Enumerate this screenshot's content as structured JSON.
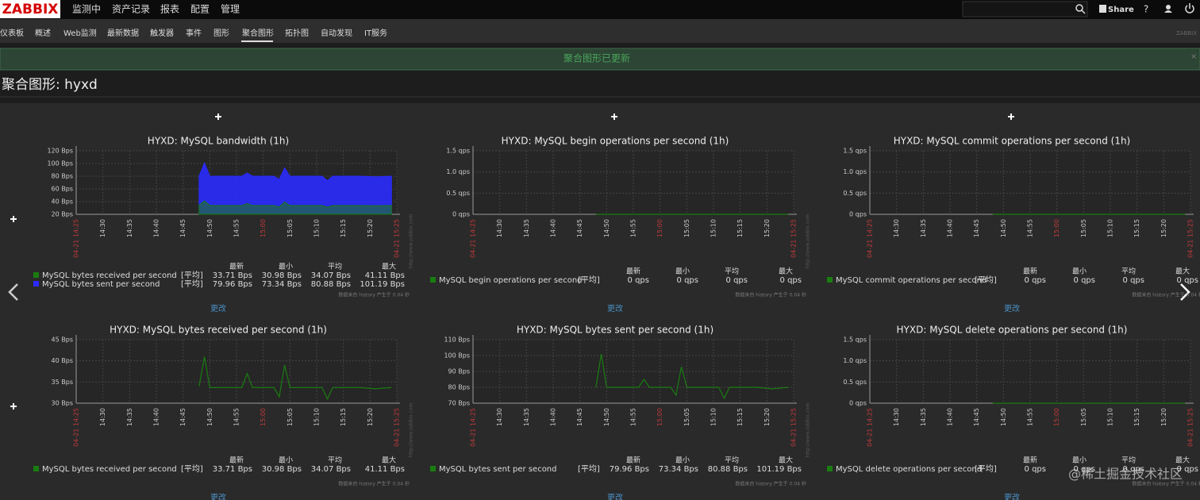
{
  "header": {
    "logo": "ZABBIX",
    "menu": [
      "监测中",
      "资产记录",
      "报表",
      "配置",
      "管理"
    ],
    "share": "Share",
    "help": "?"
  },
  "subnav": {
    "items": [
      "仪表板",
      "概述",
      "Web监测",
      "最新数据",
      "触发器",
      "事件",
      "图形",
      "聚合图形",
      "拓扑图",
      "自动发现",
      "IT服务"
    ],
    "brand": "ZABBIX"
  },
  "message": "聚合图形已更新",
  "page_title": "聚合图形: hyxd",
  "legend_headers": [
    "最新",
    "最小",
    "平均",
    "最大"
  ],
  "legend_func": "[平均]",
  "edit_label": "更改",
  "footnote": "数据来自 history 产生于 0.04 秒",
  "side_note": "http://www.zabbix.com",
  "watermark": "@稀土掘金技术社区",
  "xlim": [
    "14:25",
    "15:25"
  ],
  "xticks": [
    {
      "value": "14:25",
      "label": "04-21 14:25",
      "color": "#c23a3a"
    },
    "14:30",
    "14:35",
    "14:40",
    "14:45",
    "14:50",
    "14:55",
    {
      "value": "15:00",
      "label": "15:00",
      "color": "#c23a3a"
    },
    "15:05",
    "15:10",
    "15:15",
    "15:20",
    {
      "value": "15:25",
      "label": "04-21 15:25",
      "color": "#c23a3a"
    }
  ],
  "graphs": [
    {
      "type": "area",
      "title": "HYXD: MySQL bandwidth (1h)",
      "ylim": [
        20,
        120
      ],
      "yticks": [
        {
          "value": 20,
          "label": "20 Bps"
        },
        {
          "value": 40,
          "label": "40 Bps"
        },
        {
          "value": 60,
          "label": "60 Bps"
        },
        {
          "value": 80,
          "label": "80 Bps"
        },
        {
          "value": 100,
          "label": "100 Bps"
        },
        {
          "value": 120,
          "label": "120 Bps"
        }
      ],
      "x": [
        "14:48",
        "14:49",
        "14:50",
        "14:53",
        "14:56",
        "14:57",
        "14:58",
        "15:02",
        "15:03",
        "15:04",
        "15:05",
        "15:08",
        "15:11",
        "15:12",
        "15:13",
        "15:18",
        "15:21",
        "15:24"
      ],
      "series": [
        {
          "name": "MySQL bytes sent per second",
          "color": "#2b2bff",
          "values": [
            80,
            101,
            80,
            80,
            80,
            85,
            80,
            80,
            75,
            93,
            80,
            80,
            80,
            73,
            80,
            80,
            79,
            80
          ],
          "last": "79.96 Bps",
          "min": "73.34 Bps",
          "avg": "80.88 Bps",
          "max": "101.19 Bps"
        },
        {
          "name": "MySQL bytes received per second",
          "color": "#1a7c11",
          "values": [
            34,
            41,
            33.7,
            33.7,
            33.7,
            37,
            33.7,
            33.7,
            31.5,
            39,
            33.7,
            33.7,
            33.7,
            31,
            33.7,
            33.7,
            33.4,
            33.7
          ],
          "last": "33.71 Bps",
          "min": "30.98 Bps",
          "avg": "34.07 Bps",
          "max": "41.11 Bps"
        }
      ]
    },
    {
      "type": "line",
      "title": "HYXD: MySQL begin operations per second (1h)",
      "ylim": [
        0,
        1.5
      ],
      "yticks": [
        {
          "value": 0,
          "label": "0 qps"
        },
        {
          "value": 0.5,
          "label": "0.5 qps"
        },
        {
          "value": 1,
          "label": "1.0 qps"
        },
        {
          "value": 1.5,
          "label": "1.5 qps"
        }
      ],
      "x": [
        "14:48",
        "15:24"
      ],
      "series": [
        {
          "name": "MySQL begin operations per second",
          "color": "#1a7c11",
          "values": [
            0,
            0
          ],
          "last": "0 qps",
          "min": "0 qps",
          "avg": "0 qps",
          "max": "0 qps"
        }
      ]
    },
    {
      "type": "line",
      "title": "HYXD: MySQL commit operations per second (1h)",
      "ylim": [
        0,
        1.5
      ],
      "yticks": [
        {
          "value": 0,
          "label": "0 qps"
        },
        {
          "value": 0.5,
          "label": "0.5 qps"
        },
        {
          "value": 1,
          "label": "1.0 qps"
        },
        {
          "value": 1.5,
          "label": "1.5 qps"
        }
      ],
      "x": [
        "14:48",
        "15:24"
      ],
      "series": [
        {
          "name": "MySQL commit operations per second",
          "color": "#1a7c11",
          "values": [
            0,
            0
          ],
          "last": "0 qps",
          "min": "0 qps",
          "avg": "0 qps",
          "max": "0 qps"
        }
      ]
    },
    {
      "type": "line",
      "title": "HYXD: MySQL bytes received per second (1h)",
      "ylim": [
        30,
        45
      ],
      "yticks": [
        {
          "value": 30,
          "label": "30 Bps"
        },
        {
          "value": 35,
          "label": "35 Bps"
        },
        {
          "value": 40,
          "label": "40 Bps"
        },
        {
          "value": 45,
          "label": "45 Bps"
        }
      ],
      "x": [
        "14:48",
        "14:49",
        "14:50",
        "14:53",
        "14:56",
        "14:57",
        "14:58",
        "15:02",
        "15:03",
        "15:04",
        "15:05",
        "15:08",
        "15:11",
        "15:12",
        "15:13",
        "15:18",
        "15:21",
        "15:24"
      ],
      "series": [
        {
          "name": "MySQL bytes received per second",
          "color": "#1a7c11",
          "values": [
            34,
            41,
            33.7,
            33.7,
            33.7,
            37,
            33.7,
            33.7,
            31.5,
            39,
            33.7,
            33.7,
            33.7,
            31,
            33.7,
            33.7,
            33.4,
            33.7
          ],
          "last": "33.71 Bps",
          "min": "30.98 Bps",
          "avg": "34.07 Bps",
          "max": "41.11 Bps"
        }
      ]
    },
    {
      "type": "line",
      "title": "HYXD: MySQL bytes sent per second (1h)",
      "ylim": [
        70,
        110
      ],
      "yticks": [
        {
          "value": 70,
          "label": "70 Bps"
        },
        {
          "value": 80,
          "label": "80 Bps"
        },
        {
          "value": 90,
          "label": "90 Bps"
        },
        {
          "value": 100,
          "label": "100 Bps"
        },
        {
          "value": 110,
          "label": "110 Bps"
        }
      ],
      "x": [
        "14:48",
        "14:49",
        "14:50",
        "14:53",
        "14:56",
        "14:57",
        "14:58",
        "15:02",
        "15:03",
        "15:04",
        "15:05",
        "15:08",
        "15:11",
        "15:12",
        "15:13",
        "15:18",
        "15:21",
        "15:24"
      ],
      "series": [
        {
          "name": "MySQL bytes sent per second",
          "color": "#1a7c11",
          "values": [
            80,
            101,
            80,
            80,
            80,
            85,
            80,
            80,
            75,
            93,
            80,
            80,
            80,
            73,
            80,
            80,
            79,
            80
          ],
          "last": "79.96 Bps",
          "min": "73.34 Bps",
          "avg": "80.88 Bps",
          "max": "101.19 Bps"
        }
      ]
    },
    {
      "type": "line",
      "title": "HYXD: MySQL delete operations per second (1h)",
      "ylim": [
        0,
        1.5
      ],
      "yticks": [
        {
          "value": 0,
          "label": "0 qps"
        },
        {
          "value": 0.5,
          "label": "0.5 qps"
        },
        {
          "value": 1,
          "label": "1.0 qps"
        },
        {
          "value": 1.5,
          "label": "1.5 qps"
        }
      ],
      "x": [
        "14:48",
        "15:24"
      ],
      "series": [
        {
          "name": "MySQL delete operations per second",
          "color": "#1a7c11",
          "values": [
            0,
            0
          ],
          "last": "0 qps",
          "min": "0 qps",
          "avg": "0 qps",
          "max": "0 qps"
        }
      ]
    }
  ]
}
